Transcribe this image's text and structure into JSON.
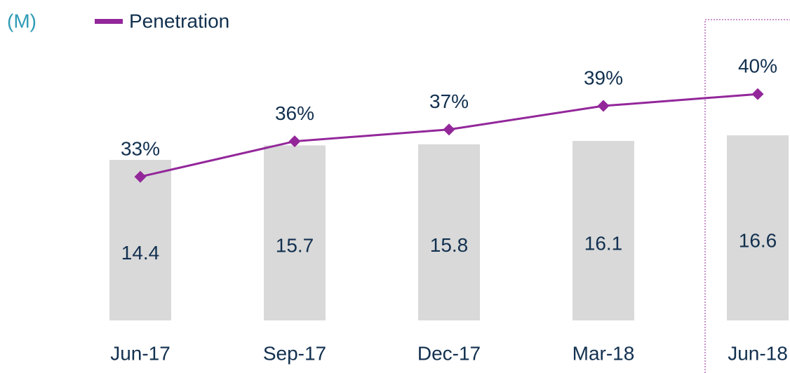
{
  "chart_data": {
    "type": "bar",
    "unit_label": "(M)",
    "categories": [
      "Jun-17",
      "Sep-17",
      "Dec-17",
      "Mar-18",
      "Jun-18"
    ],
    "values": [
      14.4,
      15.7,
      15.8,
      16.1,
      16.6
    ],
    "color": "#d9d9d9",
    "ylim": [
      0,
      20
    ],
    "series": [
      {
        "name": "Penetration",
        "type": "line",
        "color": "#93279a",
        "axis": "y2",
        "values": [
          33,
          36,
          37,
          39,
          40
        ],
        "value_labels": [
          "33%",
          "36%",
          "37%",
          "39%",
          "40%"
        ]
      }
    ],
    "y2lim": [
      20,
      45
    ],
    "legend": "top-left"
  }
}
